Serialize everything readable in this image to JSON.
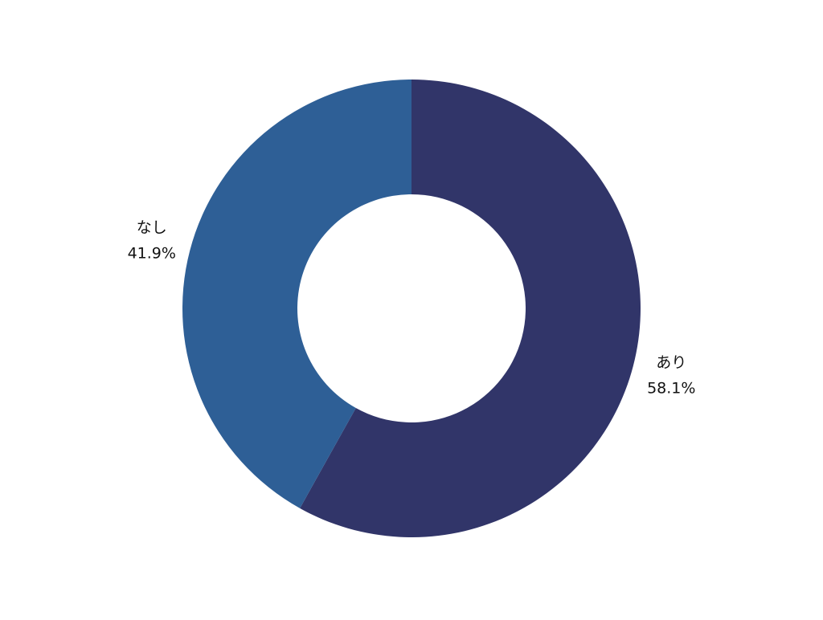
{
  "chart_data": {
    "type": "donut",
    "categories": [
      "あり",
      "なし"
    ],
    "values": [
      58.1,
      41.9
    ],
    "value_labels": [
      "58.1%",
      "41.9%"
    ],
    "colors": [
      "#313569",
      "#2e5f96"
    ]
  }
}
